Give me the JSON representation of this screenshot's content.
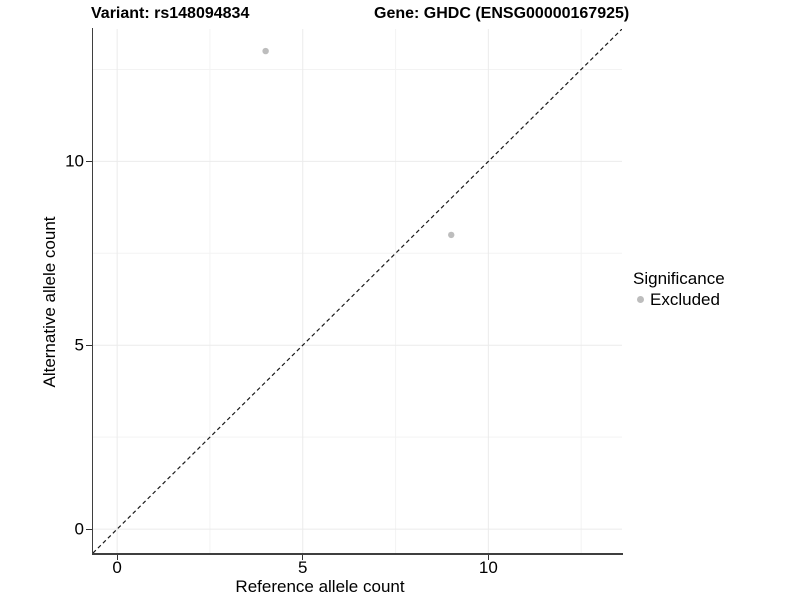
{
  "titles": {
    "variant": "Variant: rs148094834",
    "gene": "Gene: GHDC (ENSG00000167925)"
  },
  "chart_data": {
    "type": "scatter",
    "xlabel": "Reference allele count",
    "ylabel": "Alternative allele count",
    "xlim": [
      -0.65,
      13.6
    ],
    "ylim": [
      -0.65,
      13.6
    ],
    "x_ticks": [
      0,
      5,
      10
    ],
    "y_ticks": [
      0,
      5,
      10
    ],
    "x_minor_ticks": [
      2.5,
      7.5,
      12.5
    ],
    "y_minor_ticks": [
      2.5,
      7.5,
      12.5
    ],
    "grid": "major and minor gridlines, white panel",
    "identity_line": {
      "slope": 1,
      "intercept": 0,
      "linetype": "dashed"
    },
    "series": [
      {
        "name": "Excluded",
        "color": "#bdbdbd",
        "points": [
          {
            "x": 4,
            "y": 13
          },
          {
            "x": 9,
            "y": 8
          }
        ]
      }
    ],
    "legend": {
      "title": "Significance",
      "position": "right",
      "items": [
        {
          "label": "Excluded",
          "color": "#bdbdbd"
        }
      ]
    }
  },
  "colors": {
    "background": "#ffffff",
    "point": "#bdbdbd",
    "grid_major": "#ebebeb",
    "grid_minor": "#f3f3f3",
    "axis_line": "#3f3f3f",
    "tick": "#333333",
    "text": "#000000",
    "identity_line": "#1a1a1a"
  }
}
